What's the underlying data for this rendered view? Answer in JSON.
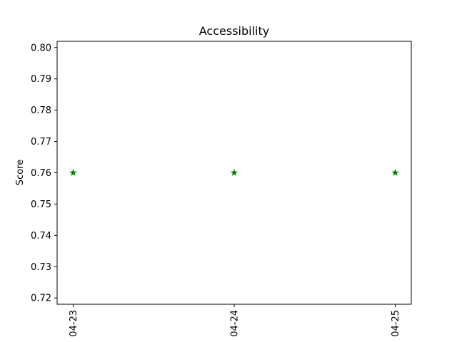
{
  "chart_data": {
    "type": "scatter",
    "title": "Accessibility",
    "xlabel": "",
    "ylabel": "Score",
    "categories": [
      "04-23",
      "04-24",
      "04-25"
    ],
    "series": [
      {
        "name": "Accessibility",
        "marker": "star",
        "color": "#008000",
        "values": [
          0.76,
          0.76,
          0.76
        ]
      }
    ],
    "ylim": [
      0.718,
      0.802
    ],
    "yticks": [
      0.72,
      0.73,
      0.74,
      0.75,
      0.76,
      0.77,
      0.78,
      0.79,
      0.8
    ],
    "ytick_labels": [
      "0.72",
      "0.73",
      "0.74",
      "0.75",
      "0.76",
      "0.77",
      "0.78",
      "0.79",
      "0.80"
    ],
    "grid": false,
    "legend": "none"
  }
}
